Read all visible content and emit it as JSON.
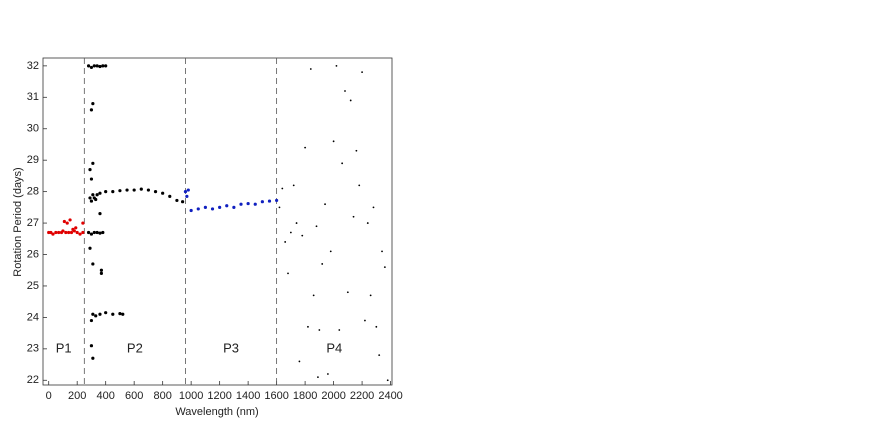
{
  "chart_data": {
    "type": "scatter",
    "xlabel": "Wavelength (nm)",
    "ylabel": "Rotation Period (days)",
    "xlim": [
      -40,
      2410
    ],
    "ylim": [
      21.85,
      32.25
    ],
    "xticks": [
      0,
      200,
      400,
      600,
      800,
      1000,
      1200,
      1400,
      1600,
      1800,
      2000,
      2200,
      2400
    ],
    "yticks": [
      22,
      23,
      24,
      25,
      26,
      27,
      28,
      29,
      30,
      31,
      32
    ],
    "vlines": [
      250,
      960,
      1600
    ],
    "annotations": [
      "P1",
      "P2",
      "P3",
      "P4"
    ],
    "series": [
      {
        "color": "#e00000",
        "marker_size": 1.6,
        "x": [
          0,
          15,
          30,
          50,
          70,
          90,
          100,
          110,
          120,
          130,
          140,
          150,
          160,
          170,
          180,
          190,
          200,
          220,
          240,
          240
        ],
        "values": [
          26.7,
          26.7,
          26.65,
          26.7,
          26.7,
          26.7,
          26.75,
          27.05,
          26.7,
          27.0,
          26.7,
          27.1,
          26.7,
          26.8,
          26.75,
          26.85,
          26.7,
          26.65,
          26.7,
          27.0
        ]
      },
      {
        "color": "#000000",
        "marker_size": 1.6,
        "x": [
          280,
          300,
          320,
          340,
          360,
          380,
          400,
          310,
          300,
          310,
          290,
          300,
          290,
          300,
          310,
          320,
          330,
          340,
          360,
          400,
          450,
          500,
          550,
          600,
          650,
          700,
          750,
          800,
          850,
          900,
          940,
          280,
          300,
          320,
          340,
          360,
          380,
          290,
          310,
          370,
          370,
          360,
          300,
          310,
          330,
          360,
          400,
          450,
          500,
          520,
          300,
          310
        ],
        "values": [
          32.0,
          31.95,
          32.0,
          32.0,
          31.98,
          32.0,
          32.0,
          30.8,
          30.6,
          28.9,
          28.7,
          28.4,
          27.8,
          27.7,
          27.9,
          27.8,
          27.75,
          27.9,
          27.95,
          28.0,
          28.0,
          28.03,
          28.05,
          28.05,
          28.08,
          28.05,
          28.0,
          27.95,
          27.85,
          27.72,
          27.68,
          26.7,
          26.65,
          26.7,
          26.7,
          26.68,
          26.7,
          26.2,
          25.7,
          25.5,
          25.4,
          27.3,
          23.9,
          24.1,
          24.05,
          24.1,
          24.15,
          24.1,
          24.12,
          24.1,
          23.1,
          22.7
        ]
      },
      {
        "color": "#1020c0",
        "marker_size": 1.6,
        "x": [
          960,
          970,
          980,
          1000,
          1050,
          1100,
          1150,
          1200,
          1250,
          1300,
          1350,
          1400,
          1450,
          1500,
          1550,
          1600
        ],
        "values": [
          28.0,
          27.85,
          28.05,
          27.4,
          27.45,
          27.5,
          27.45,
          27.5,
          27.55,
          27.5,
          27.6,
          27.62,
          27.6,
          27.68,
          27.7,
          27.72
        ]
      },
      {
        "color": "#000000",
        "marker_size": 0.9,
        "x": [
          1620,
          1640,
          1660,
          1680,
          1700,
          1720,
          1740,
          1760,
          1780,
          1800,
          1820,
          1840,
          1860,
          1880,
          1890,
          1900,
          1920,
          1940,
          1960,
          1980,
          2000,
          2020,
          2040,
          2060,
          2080,
          2100,
          2120,
          2140,
          2160,
          2180,
          2200,
          2220,
          2240,
          2260,
          2280,
          2300,
          2320,
          2340,
          2360,
          2380
        ],
        "values": [
          27.5,
          28.1,
          26.4,
          25.4,
          26.7,
          28.2,
          27.0,
          22.6,
          26.6,
          29.4,
          23.7,
          31.9,
          24.7,
          26.9,
          22.1,
          23.6,
          25.7,
          27.6,
          22.2,
          26.1,
          29.6,
          32.0,
          23.6,
          28.9,
          31.2,
          24.8,
          30.9,
          27.2,
          29.3,
          28.2,
          31.8,
          23.9,
          27.0,
          24.7,
          27.5,
          23.7,
          22.8,
          26.1,
          25.6,
          22.0
        ]
      }
    ]
  }
}
